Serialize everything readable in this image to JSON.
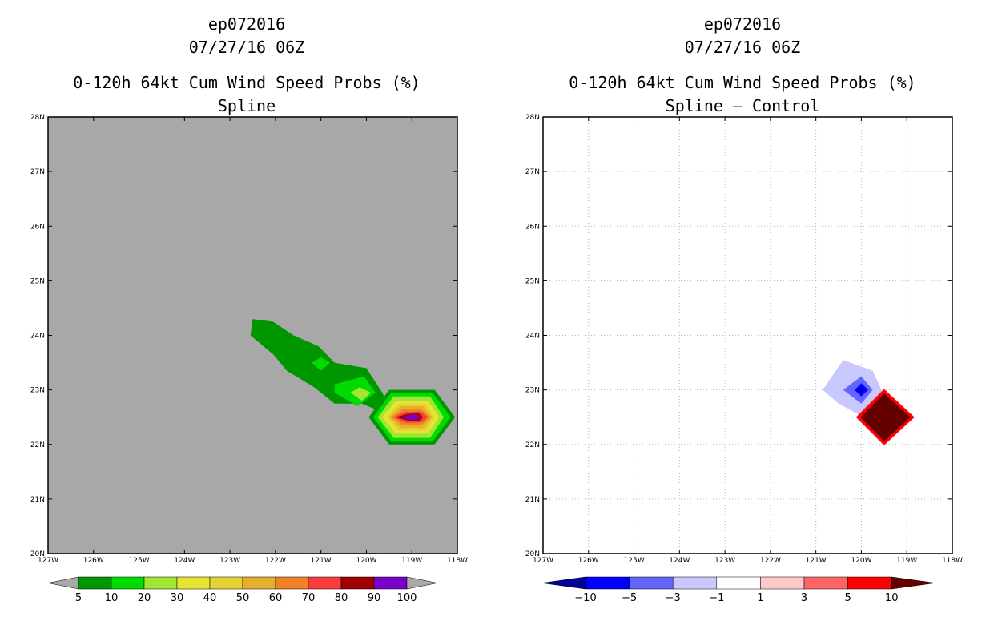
{
  "panels": [
    {
      "storm": "ep072016",
      "datetime": "07/27/16 06Z",
      "product": "0-120h 64kt Cum Wind Speed Probs (%)",
      "subtitle": "Spline",
      "background": "#a8a8a8",
      "gridlines": false
    },
    {
      "storm": "ep072016",
      "datetime": "07/27/16 06Z",
      "product": "0-120h 64kt Cum Wind Speed Probs (%)",
      "subtitle": "Spline – Control",
      "background": "#ffffff",
      "gridlines": true
    }
  ],
  "chart_data": [
    {
      "type": "heatmap",
      "title": "ep072016 07/27/16 06Z 0-120h 64kt Cum Wind Speed Probs (%) Spline",
      "x_range": [
        -127,
        -118
      ],
      "y_range": [
        20,
        28
      ],
      "x_ticks": [
        "127W",
        "126W",
        "125W",
        "124W",
        "123W",
        "122W",
        "121W",
        "120W",
        "119W",
        "118W"
      ],
      "y_ticks": [
        "20N",
        "21N",
        "22N",
        "23N",
        "24N",
        "25N",
        "26N",
        "27N",
        "28N"
      ],
      "colorbar": {
        "levels": [
          "5",
          "10",
          "20",
          "30",
          "40",
          "50",
          "60",
          "70",
          "80",
          "90",
          "100"
        ],
        "colors": [
          "#009600",
          "#00dc00",
          "#a0e632",
          "#e6e632",
          "#e6d232",
          "#e6af2d",
          "#f08228",
          "#fa3c3c",
          "#a00000",
          "#7800c8"
        ],
        "extend_color": "#a8a8a8"
      },
      "contours": [
        {
          "level": 5,
          "color": "#009600",
          "points": [
            [
              -122.5,
              24.3
            ],
            [
              -122.05,
              24.25
            ],
            [
              -121.6,
              24.0
            ],
            [
              -121.05,
              23.8
            ],
            [
              -120.7,
              23.5
            ],
            [
              -120.0,
              23.4
            ],
            [
              -119.65,
              22.95
            ],
            [
              -119.4,
              22.5
            ],
            [
              -120.1,
              22.75
            ],
            [
              -120.7,
              22.75
            ],
            [
              -121.15,
              23.05
            ],
            [
              -121.75,
              23.35
            ],
            [
              -122.05,
              23.65
            ],
            [
              -122.55,
              24.0
            ]
          ]
        },
        {
          "level": 10,
          "color": "#00dc00",
          "points": [
            [
              -121.2,
              23.5
            ],
            [
              -121.0,
              23.6
            ],
            [
              -120.8,
              23.5
            ],
            [
              -121.0,
              23.35
            ]
          ]
        },
        {
          "level": 10,
          "color": "#00dc00",
          "points": [
            [
              -120.7,
              23.1
            ],
            [
              -120.05,
              23.25
            ],
            [
              -119.8,
              22.95
            ],
            [
              -120.2,
              22.7
            ],
            [
              -120.7,
              22.95
            ]
          ]
        },
        {
          "level": 20,
          "color": "#a0e632",
          "points": [
            [
              -120.15,
              23.05
            ],
            [
              -119.9,
              22.95
            ],
            [
              -120.1,
              22.8
            ],
            [
              -120.35,
              22.95
            ]
          ]
        },
        {
          "level": 5,
          "color": "#009600",
          "points": [
            [
              -119.5,
              23.0
            ],
            [
              -118.5,
              23.0
            ],
            [
              -118.05,
              22.5
            ],
            [
              -118.5,
              22.0
            ],
            [
              -119.5,
              22.0
            ],
            [
              -119.95,
              22.5
            ]
          ]
        },
        {
          "level": 10,
          "color": "#00dc00",
          "points": [
            [
              -119.45,
              22.95
            ],
            [
              -118.55,
              22.95
            ],
            [
              -118.15,
              22.5
            ],
            [
              -118.55,
              22.05
            ],
            [
              -119.45,
              22.05
            ],
            [
              -119.85,
              22.5
            ]
          ]
        },
        {
          "level": 20,
          "color": "#a0e632",
          "points": [
            [
              -119.4,
              22.88
            ],
            [
              -118.6,
              22.88
            ],
            [
              -118.3,
              22.5
            ],
            [
              -118.6,
              22.12
            ],
            [
              -119.4,
              22.12
            ],
            [
              -119.75,
              22.5
            ]
          ]
        },
        {
          "level": 30,
          "color": "#e6e632",
          "points": [
            [
              -119.35,
              22.8
            ],
            [
              -118.65,
              22.8
            ],
            [
              -118.4,
              22.5
            ],
            [
              -118.65,
              22.2
            ],
            [
              -119.35,
              22.2
            ],
            [
              -119.65,
              22.5
            ]
          ]
        },
        {
          "level": 40,
          "color": "#e6d232",
          "points": [
            [
              -119.3,
              22.75
            ],
            [
              -118.7,
              22.75
            ],
            [
              -118.5,
              22.5
            ],
            [
              -118.7,
              22.25
            ],
            [
              -119.3,
              22.25
            ],
            [
              -119.55,
              22.5
            ]
          ]
        },
        {
          "level": 50,
          "color": "#e6af2d",
          "points": [
            [
              -119.25,
              22.7
            ],
            [
              -118.75,
              22.7
            ],
            [
              -118.55,
              22.5
            ],
            [
              -118.75,
              22.3
            ],
            [
              -119.25,
              22.3
            ],
            [
              -119.5,
              22.5
            ]
          ]
        },
        {
          "level": 60,
          "color": "#f08228",
          "points": [
            [
              -119.2,
              22.65
            ],
            [
              -118.8,
              22.65
            ],
            [
              -118.6,
              22.5
            ],
            [
              -118.8,
              22.35
            ],
            [
              -119.2,
              22.35
            ],
            [
              -119.45,
              22.5
            ]
          ]
        },
        {
          "level": 70,
          "color": "#fa3c3c",
          "points": [
            [
              -119.15,
              22.6
            ],
            [
              -118.8,
              22.6
            ],
            [
              -118.65,
              22.5
            ],
            [
              -118.8,
              22.4
            ],
            [
              -119.15,
              22.4
            ],
            [
              -119.4,
              22.5
            ]
          ]
        },
        {
          "level": 80,
          "color": "#a00000",
          "points": [
            [
              -119.1,
              22.56
            ],
            [
              -118.85,
              22.57
            ],
            [
              -118.75,
              22.5
            ],
            [
              -118.85,
              22.43
            ],
            [
              -119.1,
              22.44
            ],
            [
              -119.35,
              22.5
            ]
          ]
        },
        {
          "level": 90,
          "color": "#7800c8",
          "points": [
            [
              -119.05,
              22.54
            ],
            [
              -118.9,
              22.55
            ],
            [
              -118.82,
              22.5
            ],
            [
              -118.9,
              22.45
            ],
            [
              -119.05,
              22.46
            ],
            [
              -119.25,
              22.5
            ]
          ]
        }
      ]
    },
    {
      "type": "heatmap",
      "title": "ep072016 07/27/16 06Z 0-120h 64kt Cum Wind Speed Probs (%) Spline - Control",
      "x_range": [
        -127,
        -118
      ],
      "y_range": [
        20,
        28
      ],
      "x_ticks": [
        "127W",
        "126W",
        "125W",
        "124W",
        "123W",
        "122W",
        "121W",
        "120W",
        "119W",
        "118W"
      ],
      "y_ticks": [
        "20N",
        "21N",
        "22N",
        "23N",
        "24N",
        "25N",
        "26N",
        "27N",
        "28N"
      ],
      "colorbar": {
        "levels": [
          "−10",
          "−5",
          "−3",
          "−1",
          "1",
          "3",
          "5",
          "10"
        ],
        "colors": [
          "#000096",
          "#0000ff",
          "#6464ff",
          "#c8c8ff",
          "#ffffff",
          "#ffc8c8",
          "#ff6464",
          "#ff0000",
          "#640000"
        ]
      },
      "contours": [
        {
          "level": -1,
          "color": "#c8c8ff",
          "points": [
            [
              -120.4,
              23.55
            ],
            [
              -119.75,
              23.35
            ],
            [
              -119.5,
              22.9
            ],
            [
              -119.95,
              22.5
            ],
            [
              -120.5,
              22.75
            ],
            [
              -120.85,
              23.0
            ]
          ]
        },
        {
          "level": -3,
          "color": "#6464ff",
          "points": [
            [
              -120.0,
              23.25
            ],
            [
              -119.75,
              23.0
            ],
            [
              -120.0,
              22.75
            ],
            [
              -120.4,
              23.0
            ]
          ]
        },
        {
          "level": -5,
          "color": "#0000ff",
          "points": [
            [
              -120.0,
              23.12
            ],
            [
              -119.85,
              23.0
            ],
            [
              -120.0,
              22.88
            ],
            [
              -120.15,
              23.0
            ]
          ]
        },
        {
          "level": -10,
          "color": "#000096",
          "points": [
            [
              -120.0,
              23.04
            ],
            [
              -119.95,
              23.0
            ],
            [
              -120.0,
              22.96
            ],
            [
              -120.05,
              23.0
            ]
          ]
        },
        {
          "level": 5,
          "color": "#ff0000",
          "points": [
            [
              -119.5,
              23.0
            ],
            [
              -118.85,
              22.5
            ],
            [
              -119.5,
              22.0
            ],
            [
              -120.1,
              22.5
            ]
          ]
        },
        {
          "level": 10,
          "color": "#640000",
          "points": [
            [
              -119.5,
              22.94
            ],
            [
              -118.92,
              22.5
            ],
            [
              -119.5,
              22.06
            ],
            [
              -120.02,
              22.5
            ]
          ]
        }
      ]
    }
  ]
}
